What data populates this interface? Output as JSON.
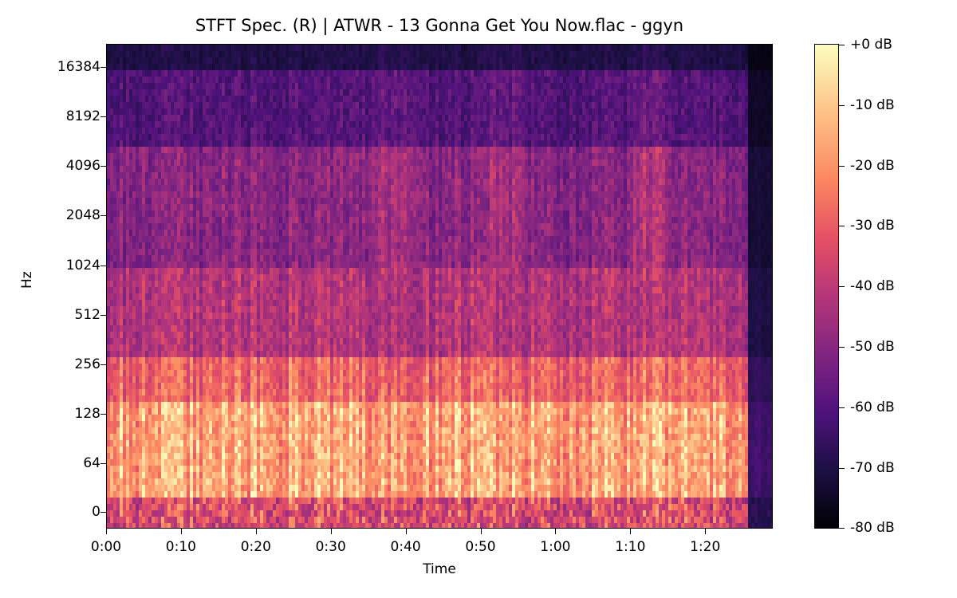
{
  "chart_data": {
    "type": "heatmap",
    "title": "STFT Spec. (R) | ATWR - 13 Gonna Get You Now.flac - ggyn",
    "xlabel": "Time",
    "ylabel": "Hz",
    "x_ticks": [
      "0:00",
      "0:10",
      "0:20",
      "0:30",
      "0:40",
      "0:50",
      "1:00",
      "1:10",
      "1:20"
    ],
    "y_ticks": [
      "0",
      "64",
      "128",
      "256",
      "512",
      "1024",
      "2048",
      "4096",
      "8192",
      "16384"
    ],
    "y_scale": "log2",
    "x_range_seconds": [
      0,
      89
    ],
    "colorbar": {
      "colormap": "magma",
      "label_ticks": [
        "+0 dB",
        "-10 dB",
        "-20 dB",
        "-30 dB",
        "-40 dB",
        "-50 dB",
        "-60 dB",
        "-70 dB",
        "-80 dB"
      ],
      "range_db": [
        -80,
        0
      ]
    },
    "description": "Energy concentrated below ~200 Hz (bright, -5 to -20 dB) from 0:00 to ~1:25; mid frequencies 256-2048 Hz around -40 to -55 dB with harmonic bands; highs above 8 kHz mostly -60 to -75 dB; sharp drop-off after ~1:25."
  }
}
